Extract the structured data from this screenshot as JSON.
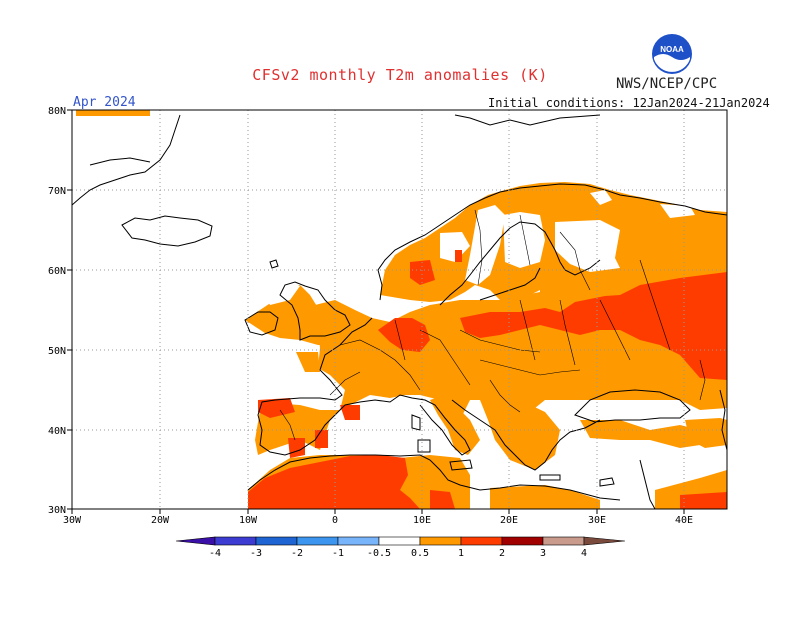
{
  "figure": {
    "title": "CFSv2 monthly T2m anomalies (K)",
    "agency": "NWS/NCEP/CPC",
    "valid_month": "Apr 2024",
    "initial_conditions": "Initial conditions: 12Jan2024-21Jan2024",
    "logo_text": "NOAA"
  },
  "axes": {
    "x_ticks": [
      "30W",
      "20W",
      "10W",
      "0",
      "10E",
      "20E",
      "30E",
      "40E"
    ],
    "y_ticks": [
      "30N",
      "40N",
      "50N",
      "60N",
      "70N",
      "80N"
    ],
    "lon_range": [
      -30,
      45
    ],
    "lat_range": [
      30,
      80
    ]
  },
  "colorbar": {
    "labels": [
      "-4",
      "-3",
      "-2",
      "-1",
      "-0.5",
      "0.5",
      "1",
      "2",
      "3",
      "4"
    ],
    "colors": [
      "#3a10a8",
      "#3c3cd2",
      "#1e64d2",
      "#3c96f0",
      "#78b4fa",
      "#ffffff",
      "#ff9900",
      "#ff3c00",
      "#a00000",
      "#c89b8c",
      "#7a4a3c"
    ]
  },
  "colors": {
    "anom_05_1": "#ff9900",
    "anom_1_2": "#ff3c00",
    "ocean": "#ffffff",
    "coast": "#000000",
    "grid": "#999999"
  }
}
